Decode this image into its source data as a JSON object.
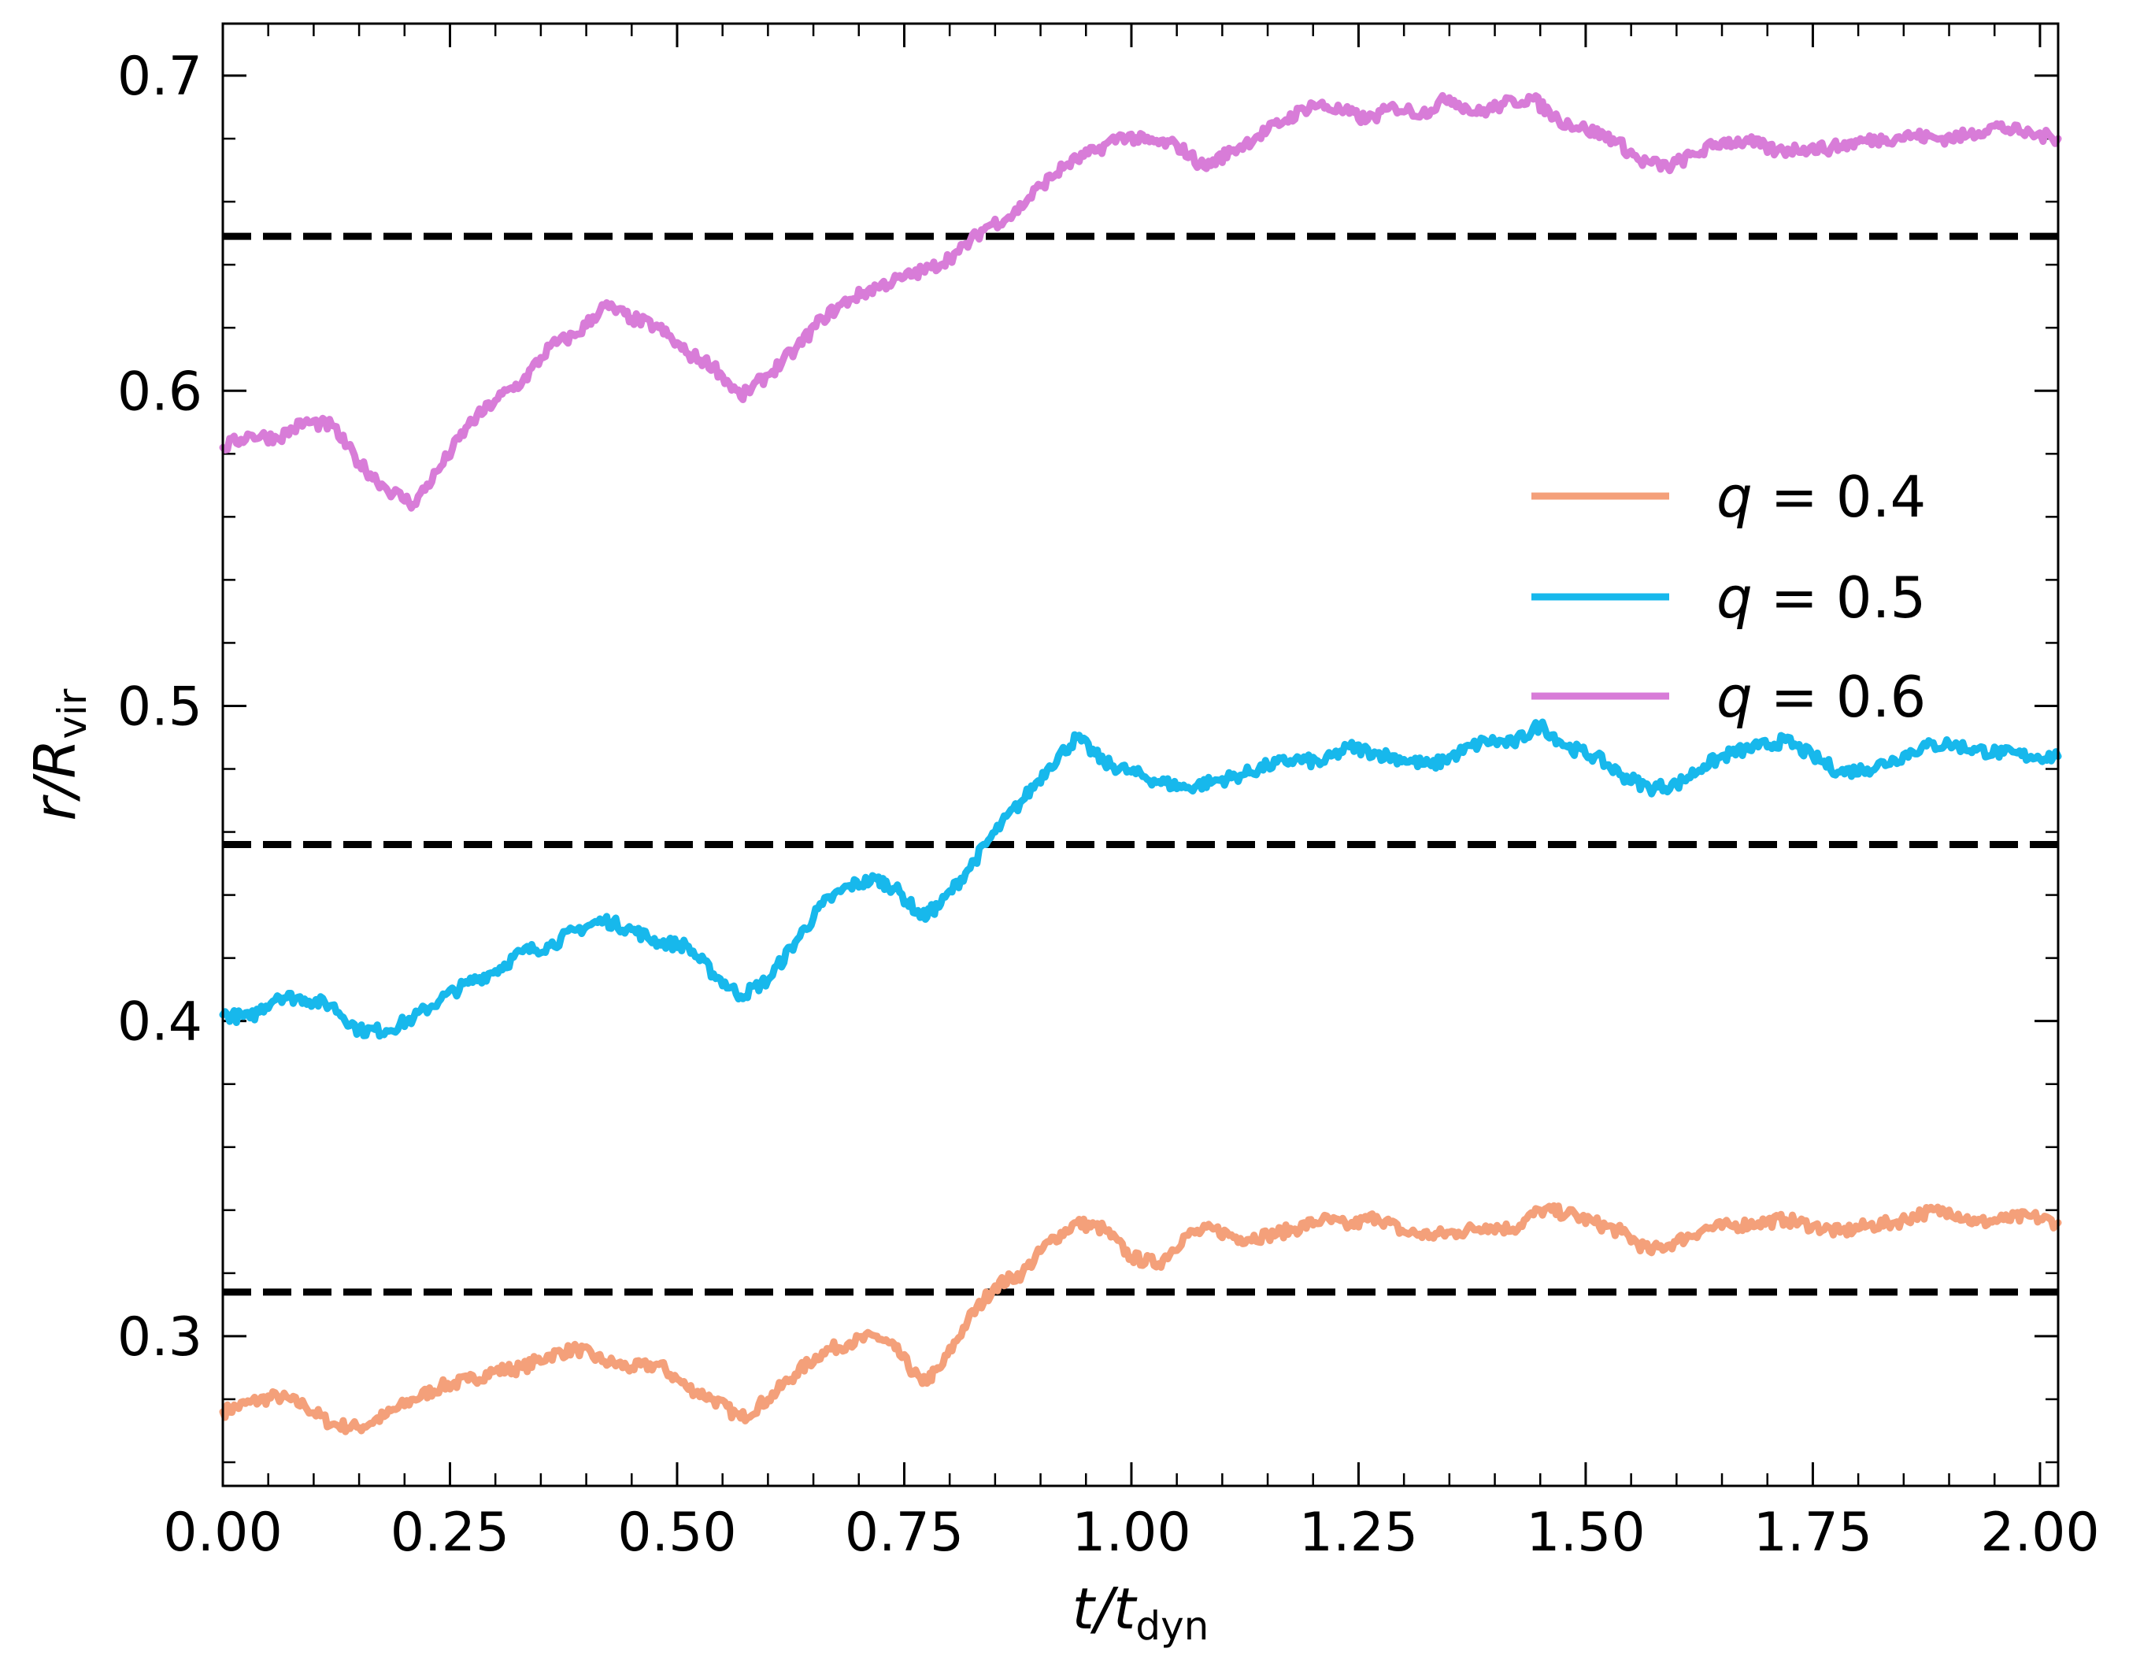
{
  "chart_data": {
    "type": "line",
    "xlabel": "t/t_dyn",
    "ylabel": "r/R_vir",
    "xlim": [
      0.0,
      2.02
    ],
    "ylim": [
      0.2525,
      0.7165
    ],
    "xticks": [
      0.0,
      0.25,
      0.5,
      0.75,
      1.0,
      1.25,
      1.5,
      1.75,
      2.0
    ],
    "xtick_labels": [
      "0.00",
      "0.25",
      "0.50",
      "0.75",
      "1.00",
      "1.25",
      "1.50",
      "1.75",
      "2.00"
    ],
    "yticks": [
      0.3,
      0.4,
      0.5,
      0.6,
      0.7
    ],
    "ytick_labels": [
      "0.3",
      "0.4",
      "0.5",
      "0.6",
      "0.7"
    ],
    "legend_position": "center-right",
    "grid": false,
    "series": [
      {
        "name": "q = 0.4",
        "legend_label": "q = 0.4",
        "color": "#F4A07A",
        "points": [
          [
            0.0,
            0.276
          ],
          [
            0.03,
            0.279
          ],
          [
            0.06,
            0.281
          ],
          [
            0.09,
            0.278
          ],
          [
            0.12,
            0.272
          ],
          [
            0.15,
            0.271
          ],
          [
            0.18,
            0.275
          ],
          [
            0.21,
            0.28
          ],
          [
            0.24,
            0.284
          ],
          [
            0.27,
            0.286
          ],
          [
            0.3,
            0.289
          ],
          [
            0.33,
            0.29
          ],
          [
            0.36,
            0.294
          ],
          [
            0.39,
            0.296
          ],
          [
            0.42,
            0.292
          ],
          [
            0.45,
            0.29
          ],
          [
            0.48,
            0.291
          ],
          [
            0.51,
            0.284
          ],
          [
            0.54,
            0.28
          ],
          [
            0.57,
            0.274
          ],
          [
            0.6,
            0.28
          ],
          [
            0.63,
            0.288
          ],
          [
            0.66,
            0.295
          ],
          [
            0.69,
            0.298
          ],
          [
            0.72,
            0.3
          ],
          [
            0.74,
            0.296
          ],
          [
            0.77,
            0.285
          ],
          [
            0.79,
            0.29
          ],
          [
            0.82,
            0.305
          ],
          [
            0.85,
            0.316
          ],
          [
            0.88,
            0.32
          ],
          [
            0.91,
            0.33
          ],
          [
            0.94,
            0.336
          ],
          [
            0.97,
            0.334
          ],
          [
            1.0,
            0.325
          ],
          [
            1.03,
            0.323
          ],
          [
            1.06,
            0.332
          ],
          [
            1.09,
            0.334
          ],
          [
            1.12,
            0.331
          ],
          [
            1.15,
            0.332
          ],
          [
            1.18,
            0.334
          ],
          [
            1.21,
            0.337
          ],
          [
            1.24,
            0.335
          ],
          [
            1.27,
            0.338
          ],
          [
            1.3,
            0.333
          ],
          [
            1.33,
            0.332
          ],
          [
            1.36,
            0.333
          ],
          [
            1.39,
            0.335
          ],
          [
            1.42,
            0.334
          ],
          [
            1.45,
            0.34
          ],
          [
            1.48,
            0.339
          ],
          [
            1.51,
            0.336
          ],
          [
            1.54,
            0.333
          ],
          [
            1.57,
            0.327
          ],
          [
            1.6,
            0.33
          ],
          [
            1.63,
            0.334
          ],
          [
            1.66,
            0.335
          ],
          [
            1.69,
            0.336
          ],
          [
            1.72,
            0.337
          ],
          [
            1.75,
            0.335
          ],
          [
            1.78,
            0.333
          ],
          [
            1.81,
            0.335
          ],
          [
            1.84,
            0.336
          ],
          [
            1.87,
            0.339
          ],
          [
            1.9,
            0.34
          ],
          [
            1.93,
            0.336
          ],
          [
            1.96,
            0.337
          ],
          [
            1.99,
            0.338
          ],
          [
            2.02,
            0.336
          ]
        ]
      },
      {
        "name": "q = 0.5",
        "legend_label": "q = 0.5",
        "color": "#17B8EC",
        "points": [
          [
            0.0,
            0.402
          ],
          [
            0.03,
            0.401
          ],
          [
            0.06,
            0.408
          ],
          [
            0.09,
            0.407
          ],
          [
            0.12,
            0.405
          ],
          [
            0.15,
            0.397
          ],
          [
            0.18,
            0.397
          ],
          [
            0.21,
            0.401
          ],
          [
            0.24,
            0.407
          ],
          [
            0.27,
            0.412
          ],
          [
            0.3,
            0.416
          ],
          [
            0.33,
            0.422
          ],
          [
            0.36,
            0.424
          ],
          [
            0.39,
            0.429
          ],
          [
            0.42,
            0.432
          ],
          [
            0.45,
            0.429
          ],
          [
            0.48,
            0.425
          ],
          [
            0.51,
            0.424
          ],
          [
            0.54,
            0.415
          ],
          [
            0.57,
            0.408
          ],
          [
            0.6,
            0.413
          ],
          [
            0.63,
            0.425
          ],
          [
            0.66,
            0.437
          ],
          [
            0.69,
            0.443
          ],
          [
            0.72,
            0.445
          ],
          [
            0.74,
            0.442
          ],
          [
            0.77,
            0.433
          ],
          [
            0.79,
            0.437
          ],
          [
            0.82,
            0.448
          ],
          [
            0.85,
            0.46
          ],
          [
            0.88,
            0.47
          ],
          [
            0.91,
            0.481
          ],
          [
            0.94,
            0.49
          ],
          [
            0.97,
            0.482
          ],
          [
            1.0,
            0.479
          ],
          [
            1.03,
            0.476
          ],
          [
            1.06,
            0.474
          ],
          [
            1.09,
            0.476
          ],
          [
            1.12,
            0.478
          ],
          [
            1.15,
            0.481
          ],
          [
            1.18,
            0.483
          ],
          [
            1.21,
            0.482
          ],
          [
            1.24,
            0.487
          ],
          [
            1.27,
            0.485
          ],
          [
            1.3,
            0.483
          ],
          [
            1.33,
            0.481
          ],
          [
            1.36,
            0.485
          ],
          [
            1.39,
            0.489
          ],
          [
            1.42,
            0.488
          ],
          [
            1.45,
            0.494
          ],
          [
            1.48,
            0.487
          ],
          [
            1.51,
            0.484
          ],
          [
            1.54,
            0.478
          ],
          [
            1.57,
            0.474
          ],
          [
            1.6,
            0.475
          ],
          [
            1.63,
            0.481
          ],
          [
            1.66,
            0.485
          ],
          [
            1.69,
            0.487
          ],
          [
            1.72,
            0.489
          ],
          [
            1.75,
            0.484
          ],
          [
            1.78,
            0.479
          ],
          [
            1.81,
            0.48
          ],
          [
            1.84,
            0.483
          ],
          [
            1.87,
            0.487
          ],
          [
            1.9,
            0.488
          ],
          [
            1.93,
            0.486
          ],
          [
            1.96,
            0.485
          ],
          [
            1.99,
            0.484
          ],
          [
            2.02,
            0.484
          ]
        ]
      },
      {
        "name": "q = 0.6",
        "legend_label": "q = 0.6",
        "color": "#D87CD8",
        "points": [
          [
            0.0,
            0.582
          ],
          [
            0.03,
            0.586
          ],
          [
            0.06,
            0.585
          ],
          [
            0.09,
            0.59
          ],
          [
            0.12,
            0.589
          ],
          [
            0.15,
            0.577
          ],
          [
            0.18,
            0.569
          ],
          [
            0.21,
            0.564
          ],
          [
            0.24,
            0.576
          ],
          [
            0.27,
            0.589
          ],
          [
            0.3,
            0.597
          ],
          [
            0.33,
            0.603
          ],
          [
            0.36,
            0.614
          ],
          [
            0.39,
            0.618
          ],
          [
            0.42,
            0.627
          ],
          [
            0.45,
            0.623
          ],
          [
            0.48,
            0.62
          ],
          [
            0.51,
            0.612
          ],
          [
            0.54,
            0.608
          ],
          [
            0.57,
            0.598
          ],
          [
            0.6,
            0.605
          ],
          [
            0.63,
            0.613
          ],
          [
            0.66,
            0.623
          ],
          [
            0.69,
            0.629
          ],
          [
            0.72,
            0.633
          ],
          [
            0.75,
            0.636
          ],
          [
            0.78,
            0.639
          ],
          [
            0.81,
            0.644
          ],
          [
            0.84,
            0.652
          ],
          [
            0.87,
            0.656
          ],
          [
            0.9,
            0.665
          ],
          [
            0.93,
            0.672
          ],
          [
            0.96,
            0.676
          ],
          [
            0.99,
            0.681
          ],
          [
            1.02,
            0.679
          ],
          [
            1.05,
            0.678
          ],
          [
            1.08,
            0.671
          ],
          [
            1.11,
            0.676
          ],
          [
            1.14,
            0.681
          ],
          [
            1.17,
            0.686
          ],
          [
            1.2,
            0.691
          ],
          [
            1.23,
            0.689
          ],
          [
            1.26,
            0.686
          ],
          [
            1.29,
            0.69
          ],
          [
            1.32,
            0.688
          ],
          [
            1.35,
            0.693
          ],
          [
            1.38,
            0.688
          ],
          [
            1.41,
            0.691
          ],
          [
            1.44,
            0.693
          ],
          [
            1.47,
            0.686
          ],
          [
            1.5,
            0.683
          ],
          [
            1.53,
            0.68
          ],
          [
            1.56,
            0.673
          ],
          [
            1.59,
            0.671
          ],
          [
            1.62,
            0.675
          ],
          [
            1.65,
            0.679
          ],
          [
            1.68,
            0.679
          ],
          [
            1.71,
            0.676
          ],
          [
            1.74,
            0.677
          ],
          [
            1.77,
            0.677
          ],
          [
            1.8,
            0.679
          ],
          [
            1.83,
            0.68
          ],
          [
            1.86,
            0.681
          ],
          [
            1.89,
            0.68
          ],
          [
            1.92,
            0.681
          ],
          [
            1.95,
            0.684
          ],
          [
            1.98,
            0.682
          ],
          [
            2.02,
            0.68
          ]
        ]
      }
    ],
    "reference_lines": [
      {
        "y": 0.649,
        "style": "dashed",
        "color": "#000000"
      },
      {
        "y": 0.456,
        "style": "dashed",
        "color": "#000000"
      },
      {
        "y": 0.314,
        "style": "dashed",
        "color": "#000000"
      }
    ]
  }
}
